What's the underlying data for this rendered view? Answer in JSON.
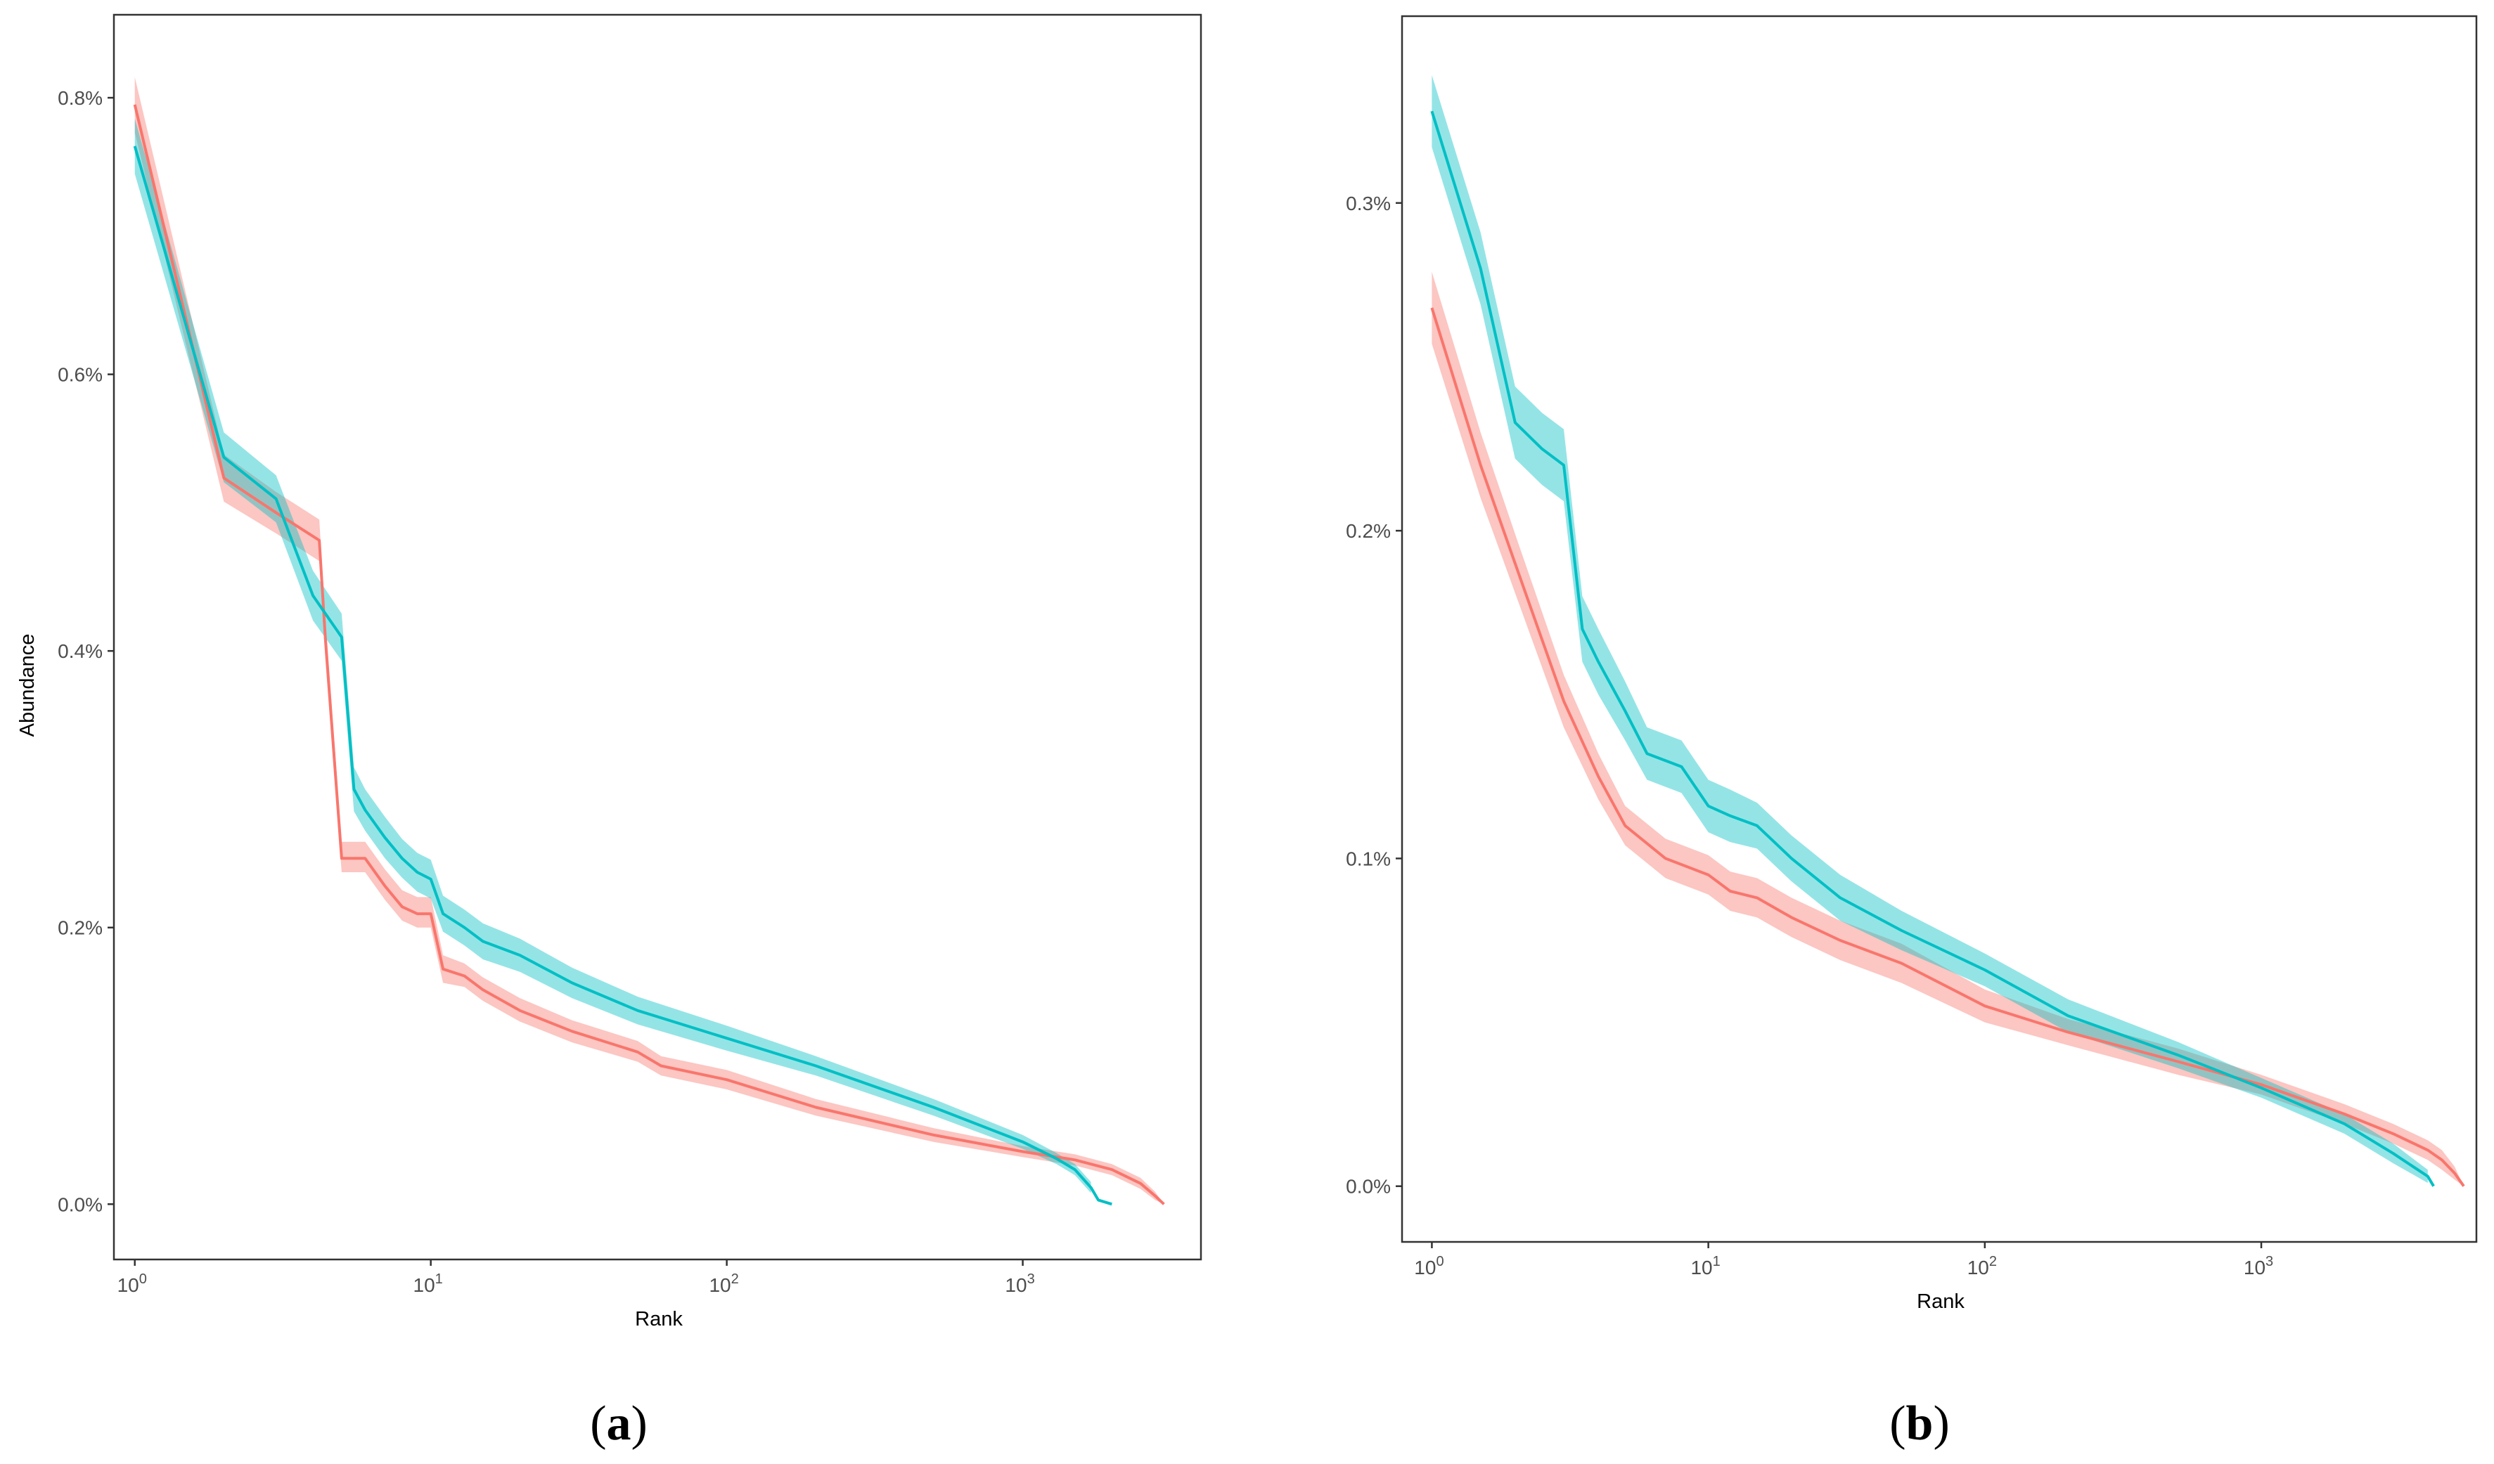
{
  "colors": {
    "red_line": "#f8766d",
    "teal_line": "#00bfc4",
    "frame": "#333333",
    "tick": "#333333"
  },
  "chart_data": [
    {
      "id": "a",
      "panel_label": "(a)",
      "panel_label_letter": "a",
      "type": "line",
      "xscale": "log10",
      "xlim": [
        0.85,
        4000
      ],
      "ylim": [
        -0.04,
        0.86
      ],
      "xlabel": "Rank",
      "ylabel": "Abundance",
      "x_ticks": [
        {
          "value": 1,
          "base": "10",
          "exp": "0"
        },
        {
          "value": 10,
          "base": "10",
          "exp": "1"
        },
        {
          "value": 100,
          "base": "10",
          "exp": "2"
        },
        {
          "value": 1000,
          "base": "10",
          "exp": "3"
        }
      ],
      "y_ticks": [
        {
          "value": 0.0,
          "label": "0.0%"
        },
        {
          "value": 0.2,
          "label": "0.2%"
        },
        {
          "value": 0.4,
          "label": "0.4%"
        },
        {
          "value": 0.6,
          "label": "0.6%"
        },
        {
          "value": 0.8,
          "label": "0.8%"
        }
      ],
      "series": [
        {
          "name": "red",
          "color": "#f8766d",
          "band": 0.012,
          "x": [
            1,
            2,
            3,
            4.2,
            4.4,
            5,
            6,
            7,
            8,
            9,
            10,
            11,
            13,
            15,
            20,
            30,
            50,
            60,
            100,
            200,
            500,
            1000,
            1500,
            2000,
            2500,
            2800,
            3000
          ],
          "y": [
            0.795,
            0.525,
            0.5,
            0.48,
            0.41,
            0.25,
            0.25,
            0.23,
            0.215,
            0.21,
            0.21,
            0.17,
            0.165,
            0.155,
            0.14,
            0.125,
            0.11,
            0.1,
            0.09,
            0.07,
            0.05,
            0.038,
            0.032,
            0.025,
            0.015,
            0.006,
            0.0
          ],
          "bx": [
            1,
            2,
            3,
            4.2,
            4.4,
            5,
            6,
            7,
            8,
            9,
            10,
            11,
            13,
            15,
            20,
            30,
            50,
            60,
            100,
            200,
            500,
            1000,
            1500,
            2000,
            2500,
            2800,
            3000
          ],
          "blo": [
            0.775,
            0.508,
            0.485,
            0.465,
            0.395,
            0.24,
            0.24,
            0.22,
            0.205,
            0.2,
            0.2,
            0.16,
            0.157,
            0.147,
            0.132,
            0.117,
            0.103,
            0.093,
            0.083,
            0.064,
            0.045,
            0.034,
            0.028,
            0.021,
            0.011,
            0.003,
            0.0
          ],
          "bhi": [
            0.815,
            0.542,
            0.515,
            0.495,
            0.425,
            0.262,
            0.262,
            0.242,
            0.227,
            0.222,
            0.222,
            0.18,
            0.174,
            0.164,
            0.149,
            0.133,
            0.118,
            0.107,
            0.097,
            0.076,
            0.055,
            0.042,
            0.036,
            0.029,
            0.019,
            0.009,
            0.0
          ]
        },
        {
          "name": "teal",
          "color": "#00bfc4",
          "band": 0.015,
          "x": [
            1,
            2,
            3,
            4,
            5,
            5.5,
            6,
            7,
            8,
            9,
            10,
            11,
            13,
            15,
            20,
            30,
            50,
            100,
            200,
            500,
            1000,
            1300,
            1500,
            1700,
            1800,
            2000
          ],
          "y": [
            0.765,
            0.54,
            0.51,
            0.44,
            0.41,
            0.3,
            0.285,
            0.265,
            0.25,
            0.24,
            0.235,
            0.21,
            0.2,
            0.19,
            0.18,
            0.16,
            0.14,
            0.12,
            0.1,
            0.07,
            0.045,
            0.033,
            0.025,
            0.012,
            0.003,
            0.0
          ],
          "bx": [
            1,
            2,
            3,
            4,
            5,
            5.5,
            6,
            7,
            8,
            9,
            10,
            11,
            13,
            15,
            20,
            30,
            50,
            100,
            200,
            500,
            1000,
            1300,
            1500,
            1700
          ],
          "blo": [
            0.745,
            0.522,
            0.493,
            0.422,
            0.393,
            0.284,
            0.27,
            0.25,
            0.236,
            0.226,
            0.221,
            0.197,
            0.187,
            0.177,
            0.168,
            0.149,
            0.13,
            0.111,
            0.093,
            0.064,
            0.04,
            0.029,
            0.021,
            0.008
          ],
          "bhi": [
            0.785,
            0.558,
            0.527,
            0.458,
            0.427,
            0.316,
            0.3,
            0.28,
            0.264,
            0.254,
            0.249,
            0.223,
            0.213,
            0.203,
            0.192,
            0.171,
            0.15,
            0.129,
            0.107,
            0.076,
            0.05,
            0.037,
            0.029,
            0.016
          ]
        }
      ]
    },
    {
      "id": "b",
      "panel_label": "(b)",
      "panel_label_letter": "b",
      "type": "line",
      "xscale": "log10",
      "xlim": [
        0.78,
        6000
      ],
      "ylim": [
        -0.017,
        0.357
      ],
      "xlabel": "Rank",
      "ylabel": "",
      "x_ticks": [
        {
          "value": 1,
          "base": "10",
          "exp": "0"
        },
        {
          "value": 10,
          "base": "10",
          "exp": "1"
        },
        {
          "value": 100,
          "base": "10",
          "exp": "2"
        },
        {
          "value": 1000,
          "base": "10",
          "exp": "3"
        }
      ],
      "y_ticks": [
        {
          "value": 0.0,
          "label": "0.0%"
        },
        {
          "value": 0.1,
          "label": "0.1%"
        },
        {
          "value": 0.2,
          "label": "0.2%"
        },
        {
          "value": 0.3,
          "label": "0.3%"
        }
      ],
      "series": [
        {
          "name": "red",
          "color": "#f8766d",
          "band": 0.006,
          "x": [
            1,
            1.5,
            2,
            3,
            4,
            5,
            7,
            10,
            12,
            15,
            20,
            30,
            50,
            100,
            200,
            500,
            1000,
            2000,
            3000,
            4000,
            4500,
            5000,
            5400
          ],
          "y": [
            0.268,
            0.22,
            0.19,
            0.148,
            0.125,
            0.11,
            0.1,
            0.095,
            0.09,
            0.088,
            0.082,
            0.075,
            0.068,
            0.055,
            0.047,
            0.038,
            0.031,
            0.022,
            0.016,
            0.011,
            0.008,
            0.004,
            0.0
          ],
          "bx": [
            1,
            1.5,
            2,
            3,
            4,
            5,
            7,
            10,
            12,
            15,
            20,
            30,
            50,
            100,
            200,
            500,
            1000,
            2000,
            3000,
            4000,
            4500,
            5000,
            5400
          ],
          "blo": [
            0.257,
            0.21,
            0.181,
            0.14,
            0.118,
            0.104,
            0.094,
            0.089,
            0.084,
            0.082,
            0.076,
            0.069,
            0.062,
            0.05,
            0.043,
            0.034,
            0.028,
            0.019,
            0.013,
            0.008,
            0.005,
            0.002,
            0.0
          ],
          "bhi": [
            0.279,
            0.23,
            0.199,
            0.156,
            0.132,
            0.116,
            0.106,
            0.101,
            0.096,
            0.094,
            0.088,
            0.081,
            0.074,
            0.06,
            0.051,
            0.042,
            0.034,
            0.025,
            0.019,
            0.014,
            0.011,
            0.006,
            0.0
          ]
        },
        {
          "name": "teal",
          "color": "#00bfc4",
          "band": 0.008,
          "x": [
            1,
            1.5,
            2,
            2.5,
            3,
            3.5,
            4,
            5,
            6,
            8,
            10,
            12,
            15,
            20,
            30,
            50,
            100,
            200,
            500,
            1000,
            2000,
            3000,
            4000,
            4200
          ],
          "y": [
            0.328,
            0.28,
            0.233,
            0.225,
            0.22,
            0.17,
            0.16,
            0.145,
            0.132,
            0.128,
            0.116,
            0.113,
            0.11,
            0.1,
            0.088,
            0.078,
            0.066,
            0.052,
            0.04,
            0.03,
            0.019,
            0.01,
            0.003,
            0.0
          ],
          "bx": [
            1,
            1.5,
            2,
            2.5,
            3,
            3.5,
            4,
            5,
            6,
            8,
            10,
            12,
            15,
            20,
            30,
            50,
            100,
            200,
            500,
            1000,
            2000,
            3000,
            4000
          ],
          "blo": [
            0.317,
            0.269,
            0.222,
            0.214,
            0.209,
            0.16,
            0.15,
            0.136,
            0.124,
            0.12,
            0.108,
            0.105,
            0.103,
            0.093,
            0.081,
            0.072,
            0.061,
            0.047,
            0.036,
            0.027,
            0.016,
            0.007,
            0.001
          ],
          "bhi": [
            0.339,
            0.291,
            0.244,
            0.236,
            0.231,
            0.18,
            0.17,
            0.154,
            0.14,
            0.136,
            0.124,
            0.121,
            0.117,
            0.107,
            0.095,
            0.084,
            0.071,
            0.057,
            0.044,
            0.033,
            0.022,
            0.013,
            0.005
          ]
        }
      ]
    }
  ]
}
